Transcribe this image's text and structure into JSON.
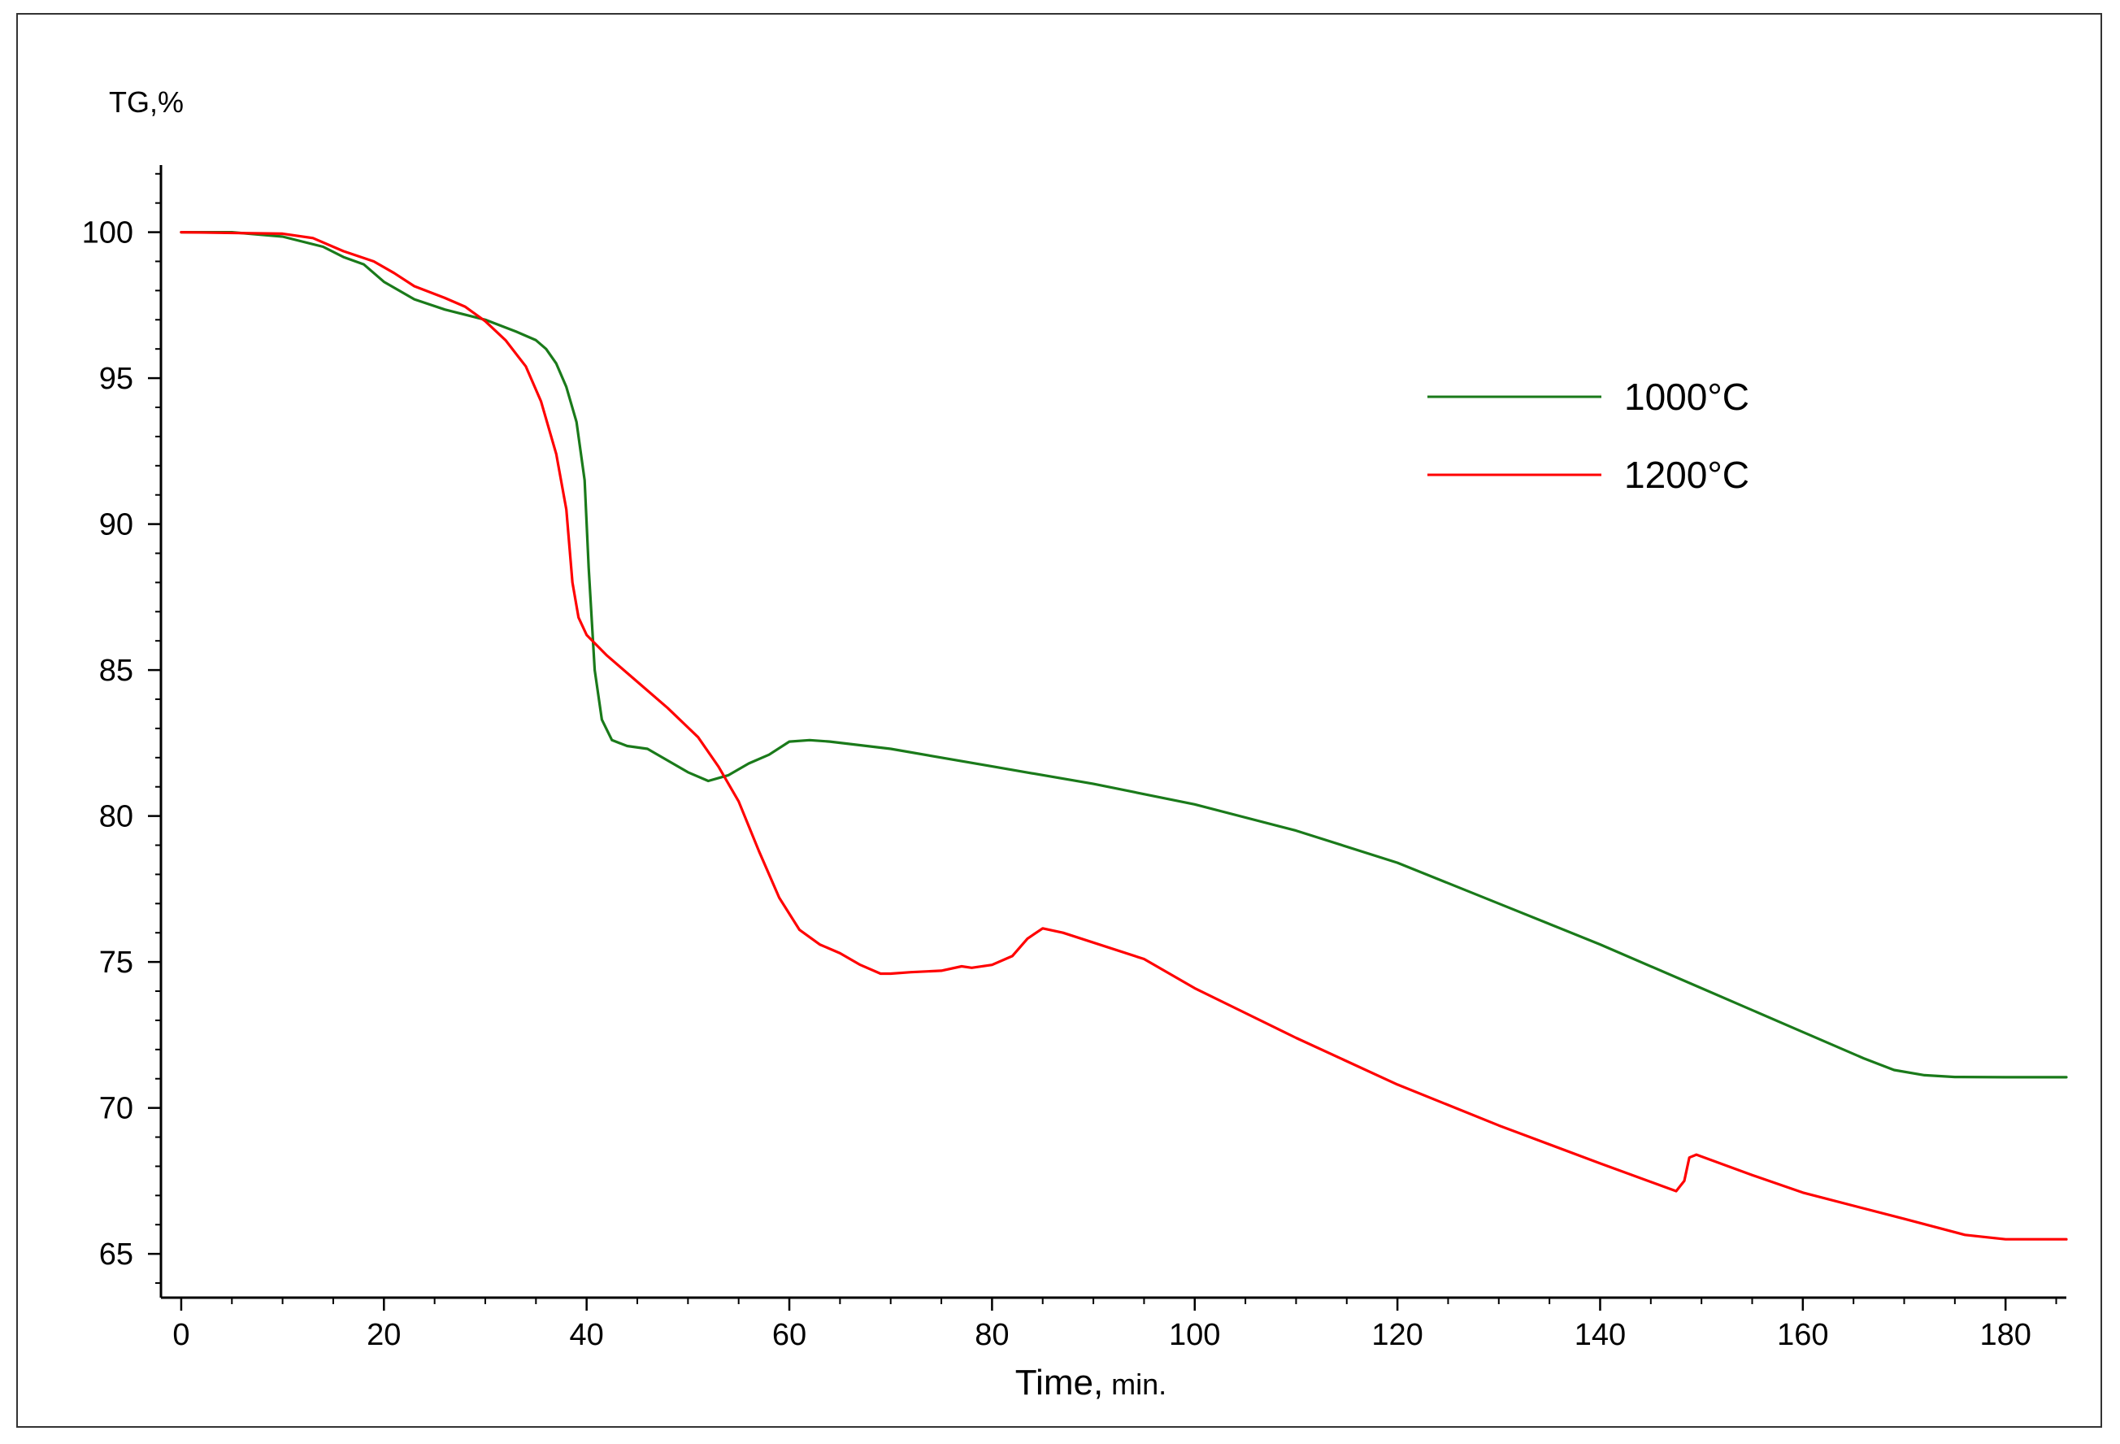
{
  "chart_data": {
    "type": "line",
    "title": "",
    "ylabel": "TG,%",
    "xlabel_main": "Time,",
    "xlabel_unit": "min.",
    "xlim": [
      -2,
      186
    ],
    "ylim": [
      63.5,
      102.3
    ],
    "xticks": [
      0,
      20,
      40,
      60,
      80,
      100,
      120,
      140,
      160,
      180
    ],
    "yticks": [
      65,
      70,
      75,
      80,
      85,
      90,
      95,
      100
    ],
    "grid": false,
    "legend_position": "upper-right",
    "colors": {
      "series_1000": "#1a7a1a",
      "series_1200": "#ff0000"
    },
    "series": [
      {
        "name": "1000°C",
        "legend_label": "1000°C",
        "color": "#1a7a1a",
        "points": [
          [
            0,
            100
          ],
          [
            5,
            100
          ],
          [
            10,
            99.85
          ],
          [
            14,
            99.5
          ],
          [
            16,
            99.15
          ],
          [
            18,
            98.9
          ],
          [
            20,
            98.3
          ],
          [
            23,
            97.7
          ],
          [
            26,
            97.35
          ],
          [
            30,
            97.0
          ],
          [
            33,
            96.6
          ],
          [
            35,
            96.3
          ],
          [
            36,
            96.0
          ],
          [
            37,
            95.5
          ],
          [
            38,
            94.7
          ],
          [
            39,
            93.5
          ],
          [
            39.8,
            91.5
          ],
          [
            40.2,
            88.5
          ],
          [
            40.8,
            85.0
          ],
          [
            41.5,
            83.3
          ],
          [
            42.5,
            82.6
          ],
          [
            44,
            82.4
          ],
          [
            46,
            82.3
          ],
          [
            48,
            81.9
          ],
          [
            50,
            81.5
          ],
          [
            52,
            81.2
          ],
          [
            54,
            81.4
          ],
          [
            56,
            81.8
          ],
          [
            58,
            82.1
          ],
          [
            60,
            82.55
          ],
          [
            62,
            82.6
          ],
          [
            64,
            82.55
          ],
          [
            70,
            82.3
          ],
          [
            80,
            81.7
          ],
          [
            90,
            81.1
          ],
          [
            100,
            80.4
          ],
          [
            110,
            79.5
          ],
          [
            120,
            78.4
          ],
          [
            130,
            77.0
          ],
          [
            140,
            75.6
          ],
          [
            150,
            74.1
          ],
          [
            160,
            72.6
          ],
          [
            166,
            71.7
          ],
          [
            169,
            71.3
          ],
          [
            172,
            71.12
          ],
          [
            175,
            71.06
          ],
          [
            180,
            71.05
          ],
          [
            186,
            71.05
          ]
        ]
      },
      {
        "name": "1200°C",
        "legend_label": "1200°C",
        "color": "#ff0000",
        "points": [
          [
            0,
            100
          ],
          [
            10,
            99.95
          ],
          [
            13,
            99.8
          ],
          [
            16,
            99.35
          ],
          [
            19,
            99.0
          ],
          [
            21,
            98.6
          ],
          [
            23,
            98.15
          ],
          [
            26,
            97.75
          ],
          [
            28,
            97.45
          ],
          [
            30,
            96.95
          ],
          [
            32,
            96.3
          ],
          [
            34,
            95.4
          ],
          [
            35.5,
            94.2
          ],
          [
            37,
            92.4
          ],
          [
            38,
            90.5
          ],
          [
            38.6,
            88.0
          ],
          [
            39.2,
            86.8
          ],
          [
            40,
            86.2
          ],
          [
            42,
            85.5
          ],
          [
            45,
            84.6
          ],
          [
            48,
            83.7
          ],
          [
            51,
            82.7
          ],
          [
            53,
            81.7
          ],
          [
            55,
            80.5
          ],
          [
            57,
            78.8
          ],
          [
            59,
            77.2
          ],
          [
            61,
            76.1
          ],
          [
            63,
            75.6
          ],
          [
            65,
            75.3
          ],
          [
            67,
            74.9
          ],
          [
            69,
            74.6
          ],
          [
            70,
            74.6
          ],
          [
            72,
            74.65
          ],
          [
            75,
            74.7
          ],
          [
            77,
            74.85
          ],
          [
            78,
            74.8
          ],
          [
            80,
            74.9
          ],
          [
            82,
            75.2
          ],
          [
            83.5,
            75.8
          ],
          [
            85,
            76.15
          ],
          [
            87,
            76.0
          ],
          [
            95,
            75.1
          ],
          [
            100,
            74.1
          ],
          [
            110,
            72.4
          ],
          [
            120,
            70.8
          ],
          [
            130,
            69.4
          ],
          [
            140,
            68.1
          ],
          [
            147.5,
            67.15
          ],
          [
            148.3,
            67.5
          ],
          [
            148.8,
            68.3
          ],
          [
            149.5,
            68.4
          ],
          [
            155,
            67.7
          ],
          [
            160,
            67.1
          ],
          [
            170,
            66.2
          ],
          [
            176,
            65.65
          ],
          [
            180,
            65.5
          ],
          [
            186,
            65.5
          ]
        ]
      }
    ]
  }
}
